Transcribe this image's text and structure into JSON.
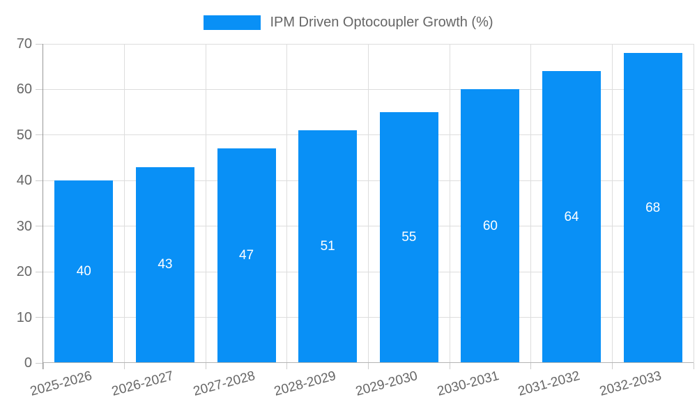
{
  "legend": {
    "label": "IPM Driven Optocoupler Growth (%)"
  },
  "chart_data": {
    "type": "bar",
    "title": "IPM Driven Optocoupler Growth (%)",
    "categories": [
      "2025-2026",
      "2026-2027",
      "2027-2028",
      "2028-2029",
      "2029-2030",
      "2030-2031",
      "2031-2032",
      "2032-2033"
    ],
    "values": [
      40,
      43,
      47,
      51,
      55,
      60,
      64,
      68
    ],
    "xlabel": "",
    "ylabel": "",
    "ylim": [
      0,
      70
    ],
    "ytick_step": 10,
    "grid": true,
    "legend_position": "top",
    "bar_label_position": "center",
    "x_label_rotation_deg": -15,
    "colors": {
      "bar": "#0990f6",
      "bar_label": "#ffffff",
      "text": "#666666",
      "grid": "#dddddd",
      "tick": "#cccccc",
      "axis_y": "#969696",
      "axis_x": "#b3b3b3",
      "background": "#ffffff"
    }
  }
}
